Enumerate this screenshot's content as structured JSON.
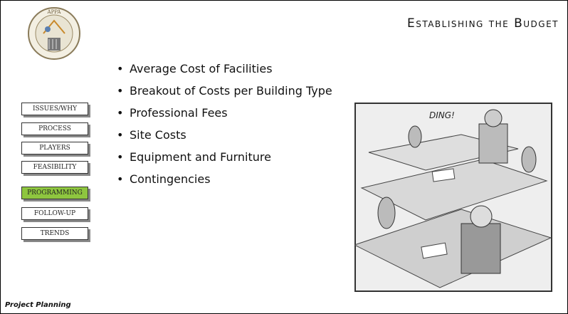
{
  "header": {
    "logo_text": "APPA",
    "title": "Establishing the Budget"
  },
  "nav": [
    "ISSUES/WHY",
    "PROCESS",
    "PLAYERS",
    "FEASIBILITY",
    "PROGRAMMING",
    "FOLLOW-UP",
    "TRENDS"
  ],
  "bullets": [
    "Average Cost of Facilities",
    "Breakout of Costs per Building Type",
    "Professional Fees",
    "Site Costs",
    "Equipment and Furniture",
    "Contingencies"
  ],
  "cartoon": {
    "caption": "DING!"
  },
  "footer": "Project Planning"
}
